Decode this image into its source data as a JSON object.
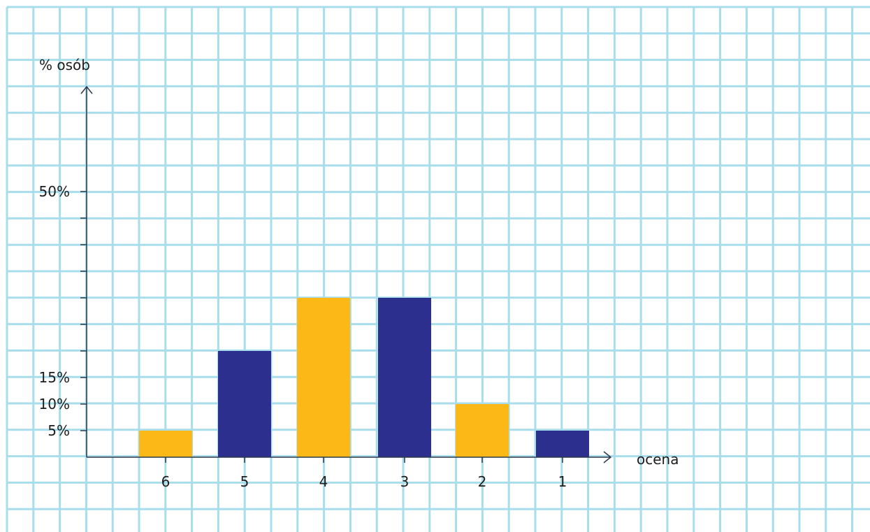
{
  "chart_data": {
    "type": "bar",
    "xlabel": "ocena",
    "ylabel": "% osób",
    "categories": [
      "6",
      "5",
      "4",
      "3",
      "2",
      "1"
    ],
    "values": [
      5,
      20,
      30,
      30,
      10,
      5
    ],
    "bar_colors": [
      "#FBB817",
      "#2D2F8F",
      "#FBB817",
      "#2D2F8F",
      "#FBB817",
      "#2D2F8F"
    ],
    "ylim": [
      0,
      70
    ],
    "y_ticks": [
      5,
      10,
      15,
      20,
      25,
      30,
      35,
      40,
      45,
      50
    ],
    "y_tick_labels": [
      {
        "value": 5,
        "text": "5%"
      },
      {
        "value": 10,
        "text": "10%"
      },
      {
        "value": 15,
        "text": "15%"
      },
      {
        "value": 50,
        "text": "50%"
      }
    ],
    "grid": true,
    "grid_color": "#A8DDEB",
    "axis_color": "#2B3A4A"
  }
}
